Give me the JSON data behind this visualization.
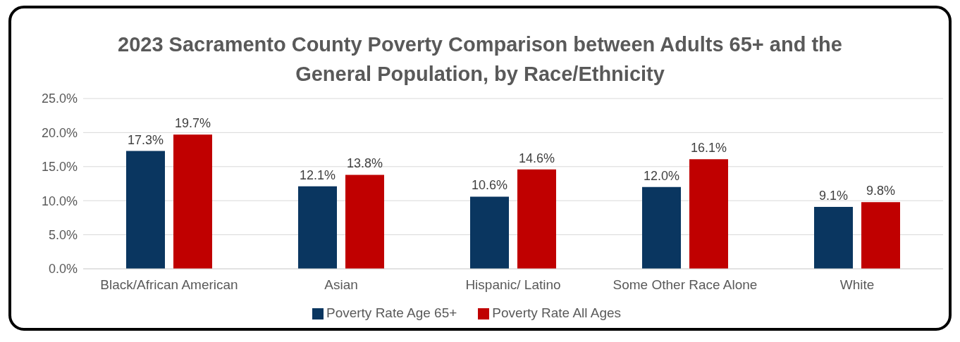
{
  "chart_data": {
    "type": "bar",
    "title": "2023 Sacramento County Poverty Comparison between Adults 65+ and the General Population, by Race/Ethnicity",
    "categories": [
      "Black/African American",
      "Asian",
      "Hispanic/ Latino",
      "Some Other Race Alone",
      "White"
    ],
    "series": [
      {
        "name": "Poverty Rate Age 65+",
        "color": "#0a3660",
        "values": [
          17.3,
          12.1,
          10.6,
          12.0,
          9.1
        ],
        "value_labels": [
          "17.3%",
          "12.1%",
          "10.6%",
          "12.0%",
          "9.1%"
        ]
      },
      {
        "name": "Poverty Rate All Ages",
        "color": "#c00000",
        "values": [
          19.7,
          13.8,
          14.6,
          16.1,
          9.8
        ],
        "value_labels": [
          "19.7%",
          "13.8%",
          "14.6%",
          "16.1%",
          "9.8%"
        ]
      }
    ],
    "ylim": [
      0,
      25
    ],
    "yticks": [
      {
        "value": 0,
        "label": "0.0%"
      },
      {
        "value": 5,
        "label": "5.0%"
      },
      {
        "value": 10,
        "label": "10.0%"
      },
      {
        "value": 15,
        "label": "15.0%"
      },
      {
        "value": 20,
        "label": "20.0%"
      },
      {
        "value": 25,
        "label": "25.0%"
      }
    ],
    "grid": "y",
    "legend": "bottom"
  }
}
